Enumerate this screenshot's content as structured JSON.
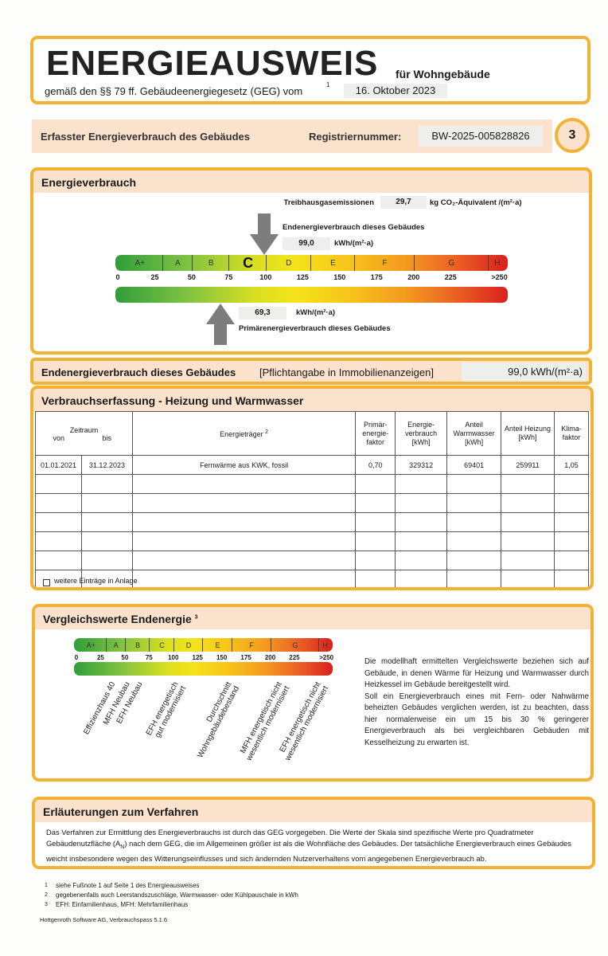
{
  "header": {
    "title": "ENERGIEAUSWEIS",
    "subtitle": "für Wohngebäude",
    "law": "gemäß den §§ 79 ff. Gebäudeenergiegesetz (GEG) vom",
    "law_footnote": "1",
    "date": "16. Oktober 2023"
  },
  "registration": {
    "label": "Erfasster Energieverbrauch des Gebäudes",
    "number_label": "Registriernummer:",
    "number": "BW-2025-005828826",
    "page": "3"
  },
  "energy": {
    "title": "Energieverbrauch",
    "ghg_label": "Treibhausgasemissionen",
    "ghg_value": "29,7",
    "ghg_unit": "kg CO₂-Äquivalent /(m²·a)",
    "final_label": "Endenergieverbrauch dieses Gebäudes",
    "final_value": "99,0",
    "final_unit": "kWh/(m²·a)",
    "primary_value": "69,3",
    "primary_unit": "kWh/(m²·a)",
    "primary_label": "Primärenergieverbrauch dieses Gebäudes",
    "classes": [
      "A+",
      "A",
      "B",
      "C",
      "D",
      "E",
      "F",
      "G",
      "H"
    ],
    "scale_ticks": [
      "0",
      "25",
      "50",
      "75",
      "100",
      "125",
      "150",
      "175",
      "200",
      "225",
      ">250"
    ]
  },
  "summary": {
    "label": "Endenergieverbrauch dieses Gebäudes",
    "note": "[Pflichtangabe in Immobilienanzeigen]",
    "value": "99,0 kWh/(m²·a)"
  },
  "table": {
    "title": "Verbrauchserfassung - Heizung und Warmwasser",
    "period": "Zeitraum",
    "from": "von",
    "to": "bis",
    "carrier": "Energieträger",
    "carrier_footnote": "2",
    "columns": [
      "Primär-energie-faktor",
      "Energie-verbrauch [kWh]",
      "Anteil Warmwasser [kWh]",
      "Anteil Heizung [kWh]",
      "Klima-faktor"
    ],
    "rows": [
      [
        "01.01.2021",
        "31.12.2023",
        "Fernwärme aus KWK, fossil",
        "0,70",
        "329312",
        "69401",
        "259911",
        "1,05"
      ]
    ],
    "checkbox_label": "weitere Einträge in Anlage"
  },
  "comparison": {
    "title": "Vergleichswerte Endenergie",
    "title_footnote": "3",
    "references": [
      [
        "Effizienzhaus 40"
      ],
      [
        "MFH Neubau"
      ],
      [
        "EFH Neubau"
      ],
      [
        "EFH energetisch",
        "gut modernisiert"
      ],
      [
        "Durchschnitt",
        "Wohngebäudebestand"
      ],
      [
        "MFH energetisch nicht",
        "wesentlich modernisiert"
      ],
      [
        "EFH energetisch nicht",
        "wesentlich modernisiert"
      ]
    ],
    "text": [
      "Die modellhaft ermittelten Vergleichswerte beziehen sich auf Gebäude, in denen Wärme für Heizung und Warmwasser durch Heizkessel im Gebäude bereitgestellt wird.",
      "Soll ein Energieverbrauch eines mit Fern- oder Nahwärme beheizten Gebäudes verglichen werden, ist zu beachten, dass hier normalerweise ein um 15 bis 30 % geringerer Energieverbrauch als bei vergleichbaren Gebäuden mit Kesselheizung zu erwarten ist."
    ]
  },
  "explanation": {
    "title": "Erläuterungen zum Verfahren",
    "text_1": "Das Verfahren zur Ermittlung des Energieverbrauchs ist durch das GEG vorgegeben. Die Werte der Skala sind spezifische Werte pro Quadratmeter Gebäudenutzfläche (A",
    "subscript": "N",
    "text_2": ") nach dem GEG, die im Allgemeinen größer ist als die Wohnfläche des Gebäudes. Der tatsächliche Energieverbrauch eines Gebäudes weicht insbesondere wegen des Witterungseinflusses und sich ändernden Nutzerverhaltens vom angegebenen Energieverbrauch ab."
  },
  "footnotes": [
    {
      "mark": "1",
      "text": "siehe Fußnote 1 auf Seite 1 des Energieausweises"
    },
    {
      "mark": "2",
      "text": "gegebenenfalls auch Leerstandszuschläge, Warmwasser- oder Kühlpauschale in kWh"
    },
    {
      "mark": "3",
      "text": "EFH: Einfamilienhaus, MFH: Mehrfamilienhaus"
    }
  ],
  "software": "Hottgenroth Software AG, Verbrauchspass 5.1.6"
}
